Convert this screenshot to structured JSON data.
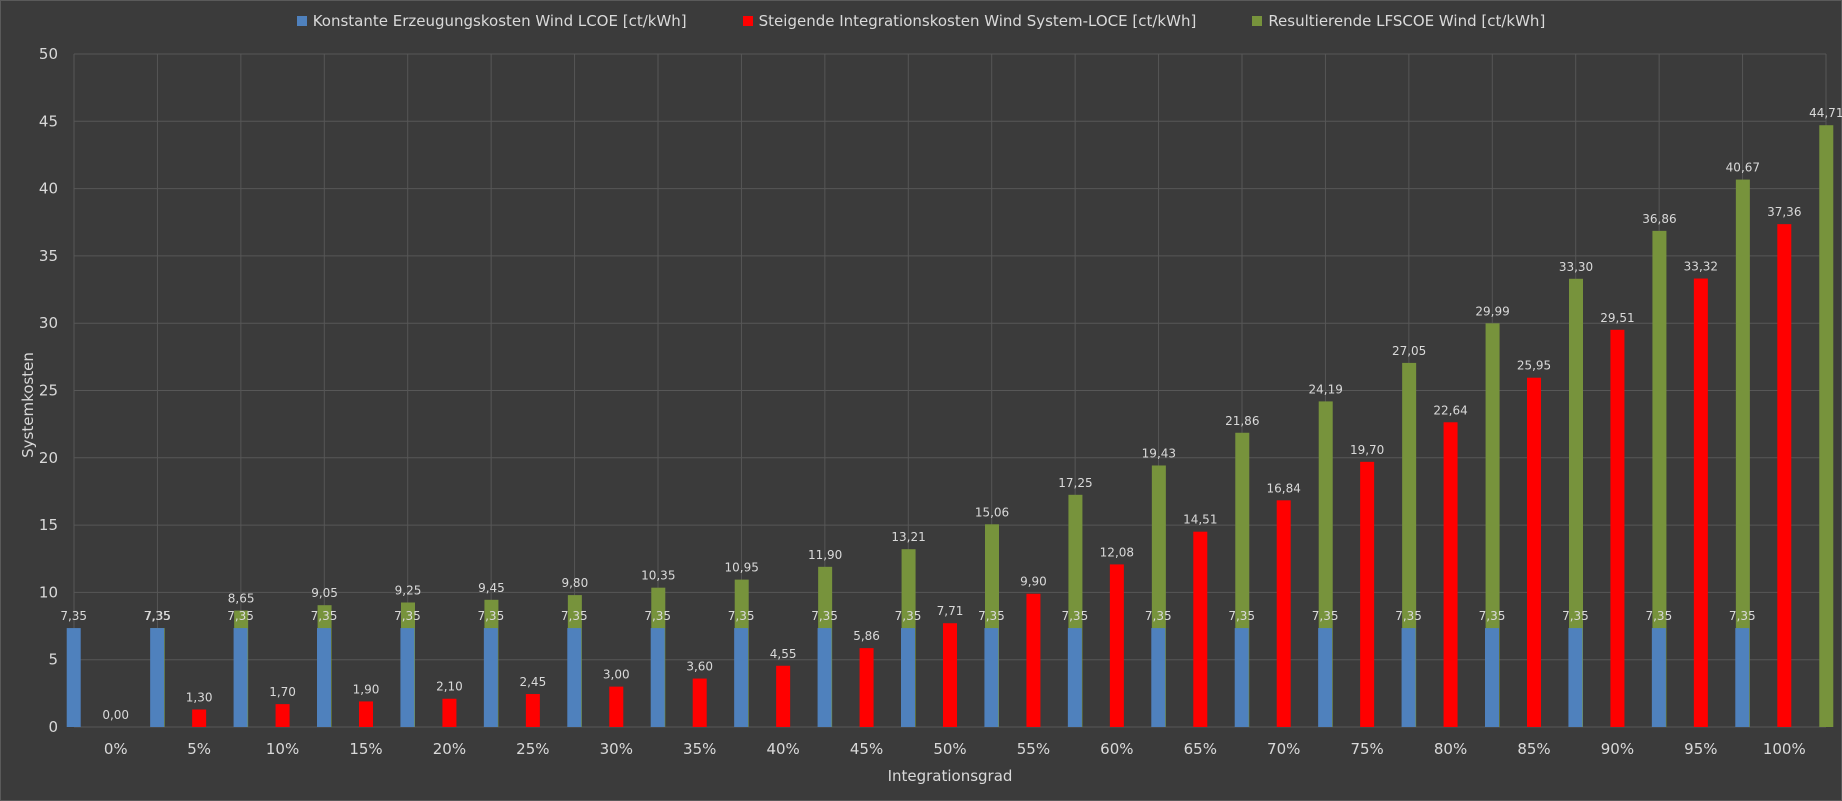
{
  "chart_data": {
    "type": "bar",
    "title": "",
    "xlabel": "Integrationsgrad",
    "ylabel": "Systemkosten",
    "ylim": [
      0,
      50
    ],
    "yticks": [
      0,
      5,
      10,
      15,
      20,
      25,
      30,
      35,
      40,
      45,
      50
    ],
    "grid": true,
    "legend_position": "top-center",
    "categories": [
      "0%",
      "5%",
      "10%",
      "15%",
      "20%",
      "25%",
      "30%",
      "35%",
      "40%",
      "45%",
      "50%",
      "55%",
      "60%",
      "65%",
      "70%",
      "75%",
      "80%",
      "85%",
      "90%",
      "95%",
      "100%"
    ],
    "series": [
      {
        "name": "Konstante Erzeugungskosten Wind LCOE [ct/kWh]",
        "color": "#4f81bd",
        "values": [
          7.35,
          7.35,
          7.35,
          7.35,
          7.35,
          7.35,
          7.35,
          7.35,
          7.35,
          7.35,
          7.35,
          7.35,
          7.35,
          7.35,
          7.35,
          7.35,
          7.35,
          7.35,
          7.35,
          7.35,
          7.35
        ],
        "labels": [
          "7,35",
          "7,35",
          "7,35",
          "7,35",
          "7,35",
          "7,35",
          "7,35",
          "7,35",
          "7,35",
          "7,35",
          "7,35",
          "7,35",
          "7,35",
          "7,35",
          "7,35",
          "7,35",
          "7,35",
          "7,35",
          "7,35",
          "7,35",
          "7,35"
        ]
      },
      {
        "name": "Steigende Integrationskosten Wind System-LOCE [ct/kWh]",
        "color": "#ff0000",
        "values": [
          0.0,
          1.3,
          1.7,
          1.9,
          2.1,
          2.45,
          3.0,
          3.6,
          4.55,
          5.86,
          7.71,
          9.9,
          12.08,
          14.51,
          16.84,
          19.7,
          22.64,
          25.95,
          29.51,
          33.32,
          37.36
        ],
        "labels": [
          "0,00",
          "1,30",
          "1,70",
          "1,90",
          "2,10",
          "2,45",
          "3,00",
          "3,60",
          "4,55",
          "5,86",
          "7,71",
          "9,90",
          "12,08",
          "14,51",
          "16,84",
          "19,70",
          "22,64",
          "25,95",
          "29,51",
          "33,32",
          "37,36"
        ]
      },
      {
        "name": "Resultierende LFSCOE Wind [ct/kWh]",
        "color": "#77933c",
        "values": [
          7.35,
          8.65,
          9.05,
          9.25,
          9.45,
          9.8,
          10.35,
          10.95,
          11.9,
          13.21,
          15.06,
          17.25,
          19.43,
          21.86,
          24.19,
          27.05,
          29.99,
          33.3,
          36.86,
          40.67,
          44.71
        ],
        "labels": [
          "7,35",
          "8,65",
          "9,05",
          "9,25",
          "9,45",
          "9,80",
          "10,35",
          "10,95",
          "11,90",
          "13,21",
          "15,06",
          "17,25",
          "19,43",
          "21,86",
          "24,19",
          "27,05",
          "29,99",
          "33,30",
          "36,86",
          "40,67",
          "44,71"
        ]
      }
    ]
  }
}
